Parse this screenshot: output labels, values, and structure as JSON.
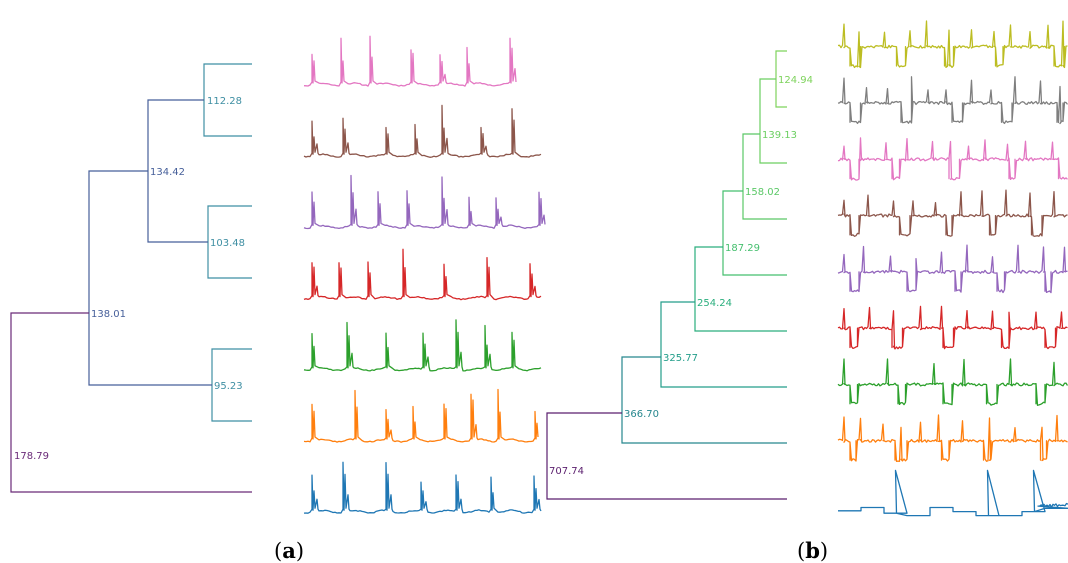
{
  "panels": [
    {
      "id": "a",
      "label_open": "(",
      "label_letter": "a",
      "label_close": ")",
      "dendrogram": {
        "nodes": [
          {
            "id": "n1",
            "label": "112.28",
            "color": "#3f8fa3"
          },
          {
            "id": "n2",
            "label": "103.48",
            "color": "#3f8fa3"
          },
          {
            "id": "n3",
            "label": "95.23",
            "color": "#3f8fa3"
          },
          {
            "id": "n4",
            "label": "134.42",
            "color": "#465f9a"
          },
          {
            "id": "n5",
            "label": "138.01",
            "color": "#465f9a"
          },
          {
            "id": "n6",
            "label": "178.79",
            "color": "#6a2a78"
          }
        ]
      },
      "traces": [
        {
          "color": "#e377c2",
          "pattern": "spike_short"
        },
        {
          "color": "#8c564b",
          "pattern": "spike"
        },
        {
          "color": "#9467bd",
          "pattern": "spike"
        },
        {
          "color": "#d62728",
          "pattern": "spike"
        },
        {
          "color": "#2ca02c",
          "pattern": "spike"
        },
        {
          "color": "#ff7f0e",
          "pattern": "spike"
        },
        {
          "color": "#1f77b4",
          "pattern": "spike"
        }
      ]
    },
    {
      "id": "b",
      "label_open": "(",
      "label_letter": "b",
      "label_close": ")",
      "dendrogram": {
        "nodes": [
          {
            "id": "m1",
            "label": "124.94",
            "color": "#7ed35c"
          },
          {
            "id": "m2",
            "label": "139.13",
            "color": "#6ccf62"
          },
          {
            "id": "m3",
            "label": "158.02",
            "color": "#5ac866"
          },
          {
            "id": "m4",
            "label": "187.29",
            "color": "#45bf6e"
          },
          {
            "id": "m5",
            "label": "254.24",
            "color": "#2aae7d"
          },
          {
            "id": "m6",
            "label": "325.77",
            "color": "#239e8a"
          },
          {
            "id": "m7",
            "label": "366.70",
            "color": "#26878e"
          },
          {
            "id": "m8",
            "label": "707.74",
            "color": "#5b1f6e"
          }
        ]
      },
      "traces": [
        {
          "color": "#bcbd22",
          "pattern": "square"
        },
        {
          "color": "#7f7f7f",
          "pattern": "square"
        },
        {
          "color": "#e377c2",
          "pattern": "square"
        },
        {
          "color": "#8c564b",
          "pattern": "square"
        },
        {
          "color": "#9467bd",
          "pattern": "square"
        },
        {
          "color": "#d62728",
          "pattern": "square"
        },
        {
          "color": "#2ca02c",
          "pattern": "square_sparse"
        },
        {
          "color": "#ff7f0e",
          "pattern": "square"
        },
        {
          "color": "#1f77b4",
          "pattern": "steps"
        }
      ]
    }
  ]
}
